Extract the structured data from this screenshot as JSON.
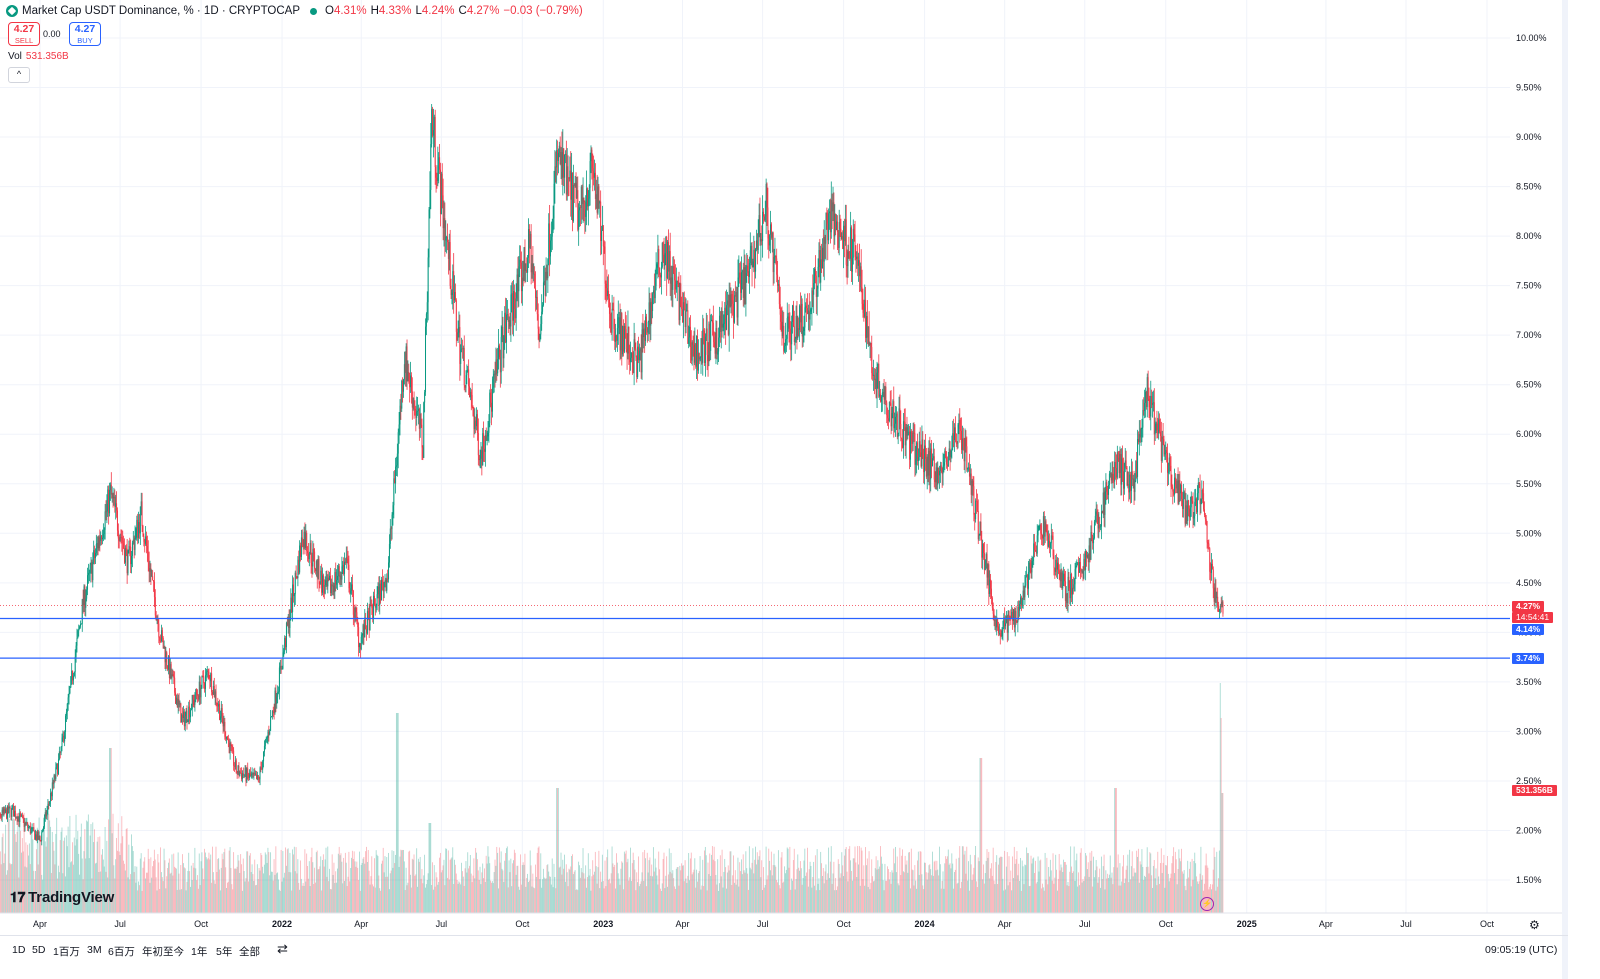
{
  "legend": {
    "title": "Market Cap USDT Dominance, % · 1D · CRYPTOCAP",
    "ohlc": [
      {
        "k": "O",
        "v": "4.31%"
      },
      {
        "k": "H",
        "v": "4.33%"
      },
      {
        "k": "L",
        "v": "4.24%"
      },
      {
        "k": "C",
        "v": "4.27%"
      },
      {
        "k": "",
        "v": "−0.03 (−0.79%)"
      }
    ]
  },
  "trade": {
    "sell_price": "4.27",
    "sell_label": "SELL",
    "buy_price": "4.27",
    "buy_label": "BUY",
    "spread": "0.00"
  },
  "volume_legend": {
    "label": "Vol",
    "value": "531.356B"
  },
  "price_tags": {
    "last": "4.27%",
    "countdown": "14:54:41",
    "hline1": "4.14%",
    "hline2": "3.74%",
    "volume": "531.356B"
  },
  "timeframes": [
    "1D",
    "5D",
    "1百万",
    "3M",
    "6百万",
    "年初至今",
    "1年",
    "5年",
    "全部"
  ],
  "clock": "09:05:19 (UTC)",
  "brand": "TradingView",
  "colors": {
    "up": "#089981",
    "down": "#f23645",
    "hline": "#2962ff",
    "grid": "#f0f3fa"
  },
  "chart_data": {
    "type": "candlestick",
    "title": "Market Cap USDT Dominance, % · 1D · CRYPTOCAP",
    "y_unit": "%",
    "ylim": [
      1.2,
      10.2
    ],
    "y_ticks": [
      "1.50%",
      "2.00%",
      "2.50%",
      "3.00%",
      "3.50%",
      "4.00%",
      "4.50%",
      "5.00%",
      "5.50%",
      "6.00%",
      "6.50%",
      "7.00%",
      "7.50%",
      "8.00%",
      "8.50%",
      "9.00%",
      "9.50%",
      "10.00%"
    ],
    "x_range": [
      "2021-02-01",
      "2025-12-15"
    ],
    "x_ticks": [
      {
        "label": "Apr",
        "date": "2021-04-01"
      },
      {
        "label": "Jul",
        "date": "2021-07-01"
      },
      {
        "label": "Oct",
        "date": "2021-10-01"
      },
      {
        "label": "2022",
        "date": "2022-01-01"
      },
      {
        "label": "Apr",
        "date": "2022-04-01"
      },
      {
        "label": "Jul",
        "date": "2022-07-01"
      },
      {
        "label": "Oct",
        "date": "2022-10-01"
      },
      {
        "label": "2023",
        "date": "2023-01-01"
      },
      {
        "label": "Apr",
        "date": "2023-04-01"
      },
      {
        "label": "Jul",
        "date": "2023-07-01"
      },
      {
        "label": "Oct",
        "date": "2023-10-01"
      },
      {
        "label": "2024",
        "date": "2024-01-01"
      },
      {
        "label": "Apr",
        "date": "2024-04-01"
      },
      {
        "label": "Jul",
        "date": "2024-07-01"
      },
      {
        "label": "Oct",
        "date": "2024-10-01"
      },
      {
        "label": "2025",
        "date": "2025-01-01"
      },
      {
        "label": "Apr",
        "date": "2025-04-01"
      },
      {
        "label": "Jul",
        "date": "2025-07-01"
      },
      {
        "label": "Oct",
        "date": "2025-10-01"
      }
    ],
    "close_path": [
      {
        "date": "2021-02-01",
        "v": 2.1
      },
      {
        "date": "2021-03-01",
        "v": 2.2
      },
      {
        "date": "2021-04-01",
        "v": 1.9
      },
      {
        "date": "2021-04-25",
        "v": 2.8
      },
      {
        "date": "2021-05-20",
        "v": 4.3
      },
      {
        "date": "2021-06-20",
        "v": 5.4
      },
      {
        "date": "2021-07-10",
        "v": 4.7
      },
      {
        "date": "2021-07-25",
        "v": 5.2
      },
      {
        "date": "2021-08-15",
        "v": 4.0
      },
      {
        "date": "2021-09-10",
        "v": 3.1
      },
      {
        "date": "2021-10-10",
        "v": 3.6
      },
      {
        "date": "2021-11-10",
        "v": 2.6
      },
      {
        "date": "2021-12-05",
        "v": 2.5
      },
      {
        "date": "2021-12-28",
        "v": 3.5
      },
      {
        "date": "2022-01-25",
        "v": 5.0
      },
      {
        "date": "2022-02-20",
        "v": 4.4
      },
      {
        "date": "2022-03-15",
        "v": 4.7
      },
      {
        "date": "2022-03-30",
        "v": 3.9
      },
      {
        "date": "2022-05-01",
        "v": 4.6
      },
      {
        "date": "2022-05-20",
        "v": 6.8
      },
      {
        "date": "2022-06-10",
        "v": 5.9
      },
      {
        "date": "2022-06-20",
        "v": 9.2
      },
      {
        "date": "2022-07-20",
        "v": 7.0
      },
      {
        "date": "2022-08-15",
        "v": 5.8
      },
      {
        "date": "2022-09-10",
        "v": 7.0
      },
      {
        "date": "2022-10-10",
        "v": 7.9
      },
      {
        "date": "2022-10-20",
        "v": 7.0
      },
      {
        "date": "2022-11-10",
        "v": 8.8
      },
      {
        "date": "2022-12-05",
        "v": 8.2
      },
      {
        "date": "2022-12-20",
        "v": 8.7
      },
      {
        "date": "2023-01-10",
        "v": 7.2
      },
      {
        "date": "2023-02-10",
        "v": 6.7
      },
      {
        "date": "2023-03-10",
        "v": 7.9
      },
      {
        "date": "2023-04-15",
        "v": 6.8
      },
      {
        "date": "2023-05-10",
        "v": 7.0
      },
      {
        "date": "2023-06-15",
        "v": 7.6
      },
      {
        "date": "2023-07-05",
        "v": 8.3
      },
      {
        "date": "2023-07-25",
        "v": 7.0
      },
      {
        "date": "2023-08-25",
        "v": 7.3
      },
      {
        "date": "2023-09-15",
        "v": 8.2
      },
      {
        "date": "2023-10-15",
        "v": 7.8
      },
      {
        "date": "2023-11-05",
        "v": 6.6
      },
      {
        "date": "2023-12-15",
        "v": 5.9
      },
      {
        "date": "2024-01-20",
        "v": 5.6
      },
      {
        "date": "2024-02-10",
        "v": 6.1
      },
      {
        "date": "2024-03-10",
        "v": 4.7
      },
      {
        "date": "2024-03-25",
        "v": 4.0
      },
      {
        "date": "2024-04-15",
        "v": 4.2
      },
      {
        "date": "2024-05-15",
        "v": 5.1
      },
      {
        "date": "2024-06-10",
        "v": 4.4
      },
      {
        "date": "2024-07-01",
        "v": 4.7
      },
      {
        "date": "2024-08-05",
        "v": 5.7
      },
      {
        "date": "2024-08-25",
        "v": 5.5
      },
      {
        "date": "2024-09-10",
        "v": 6.4
      },
      {
        "date": "2024-10-05",
        "v": 5.6
      },
      {
        "date": "2024-10-25",
        "v": 5.2
      },
      {
        "date": "2024-11-10",
        "v": 5.4
      },
      {
        "date": "2024-11-25",
        "v": 4.4
      },
      {
        "date": "2024-12-05",
        "v": 4.27
      }
    ],
    "last_value": 4.27,
    "horizontal_lines": [
      4.14,
      3.74
    ],
    "volume": {
      "series_name": "Vol",
      "last": "531.356B",
      "peak_date": "2024-12-05"
    }
  }
}
